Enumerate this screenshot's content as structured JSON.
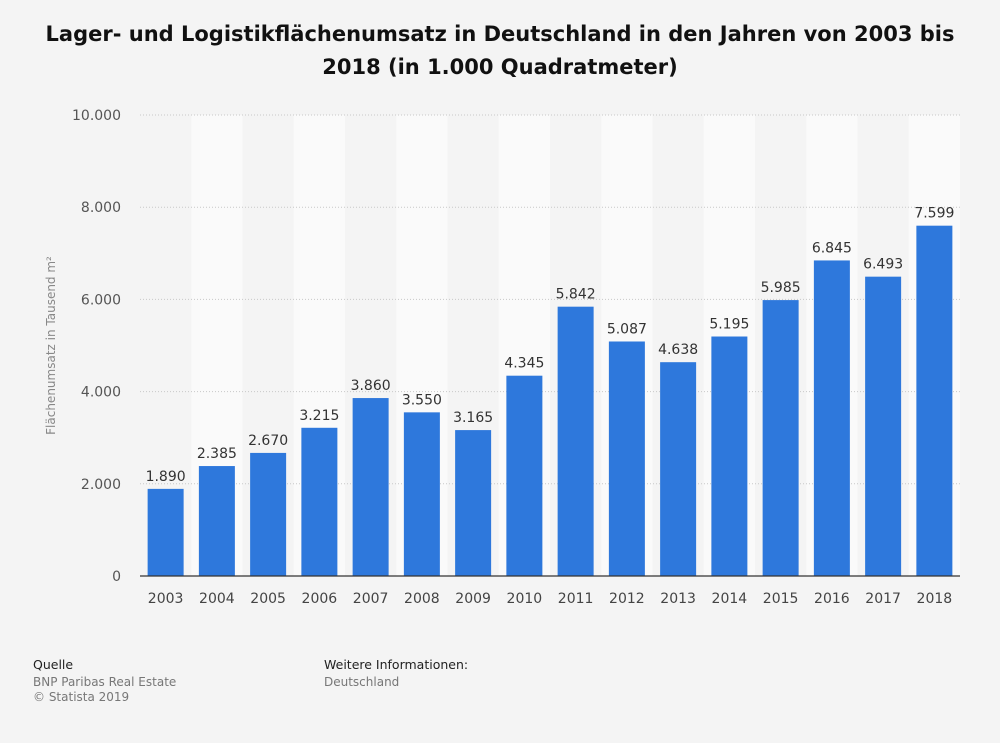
{
  "title": "Lager- und Logistikflächenumsatz in Deutschland in den Jahren von 2003 bis 2018 (in 1.000 Quadratmeter)",
  "chart_data": {
    "type": "bar",
    "title": "Lager- und Logistikflächenumsatz in Deutschland in den Jahren von 2003 bis 2018 (in 1.000 Quadratmeter)",
    "xlabel": "",
    "ylabel": "Flächenumsatz in Tausend m²",
    "ylim": [
      0,
      10000
    ],
    "yticks": [
      0,
      2000,
      4000,
      6000,
      8000,
      10000
    ],
    "ytick_labels": [
      "0",
      "2.000",
      "4.000",
      "6.000",
      "8.000",
      "10.000"
    ],
    "categories": [
      "2003",
      "2004",
      "2005",
      "2006",
      "2007",
      "2008",
      "2009",
      "2010",
      "2011",
      "2012",
      "2013",
      "2014",
      "2015",
      "2016",
      "2017",
      "2018"
    ],
    "values": [
      1890,
      2385,
      2670,
      3215,
      3860,
      3550,
      3165,
      4345,
      5842,
      5087,
      4638,
      5195,
      5985,
      6845,
      6493,
      7599
    ],
    "value_labels": [
      "1.890",
      "2.385",
      "2.670",
      "3.215",
      "3.860",
      "3.550",
      "3.165",
      "4.345",
      "5.842",
      "5.087",
      "4.638",
      "5.195",
      "5.985",
      "6.845",
      "6.493",
      "7.599"
    ],
    "bar_color": "#2e78dc",
    "grid": true,
    "legend": "none"
  },
  "footer": {
    "source_label": "Quelle",
    "source_value": "BNP Paribas Real Estate",
    "copyright": "© Statista 2019",
    "info_label": "Weitere Informationen:",
    "info_value": "Deutschland"
  }
}
